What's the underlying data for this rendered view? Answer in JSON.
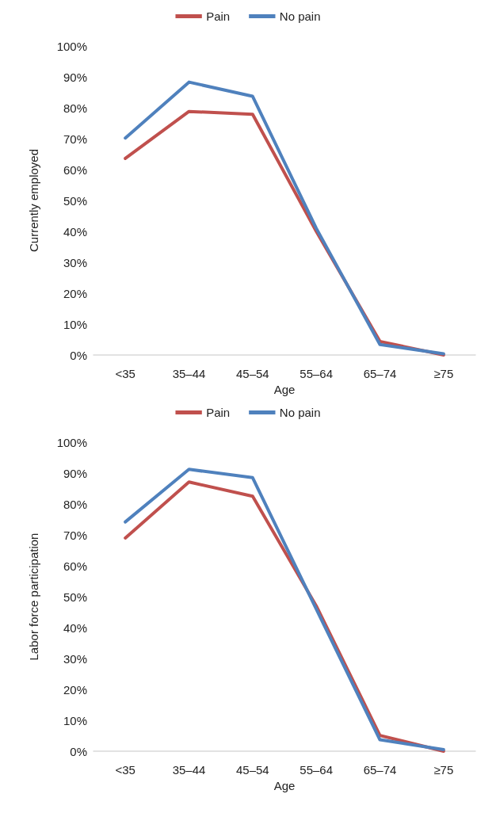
{
  "chart_data": [
    {
      "type": "line",
      "xlabel": "Age",
      "ylabel": "Currently employed",
      "categories": [
        "<35",
        "35–44",
        "45–54",
        "55–64",
        "65–74",
        "≥75"
      ],
      "series": [
        {
          "name": "Pain",
          "color": "#c0504d",
          "values": [
            63.6,
            78.8,
            77.9,
            40,
            4.4,
            0
          ]
        },
        {
          "name": "No pain",
          "color": "#4f81bd",
          "values": [
            70.2,
            88.3,
            83.7,
            41,
            3.4,
            0.4
          ]
        }
      ],
      "ylim": [
        0,
        100
      ],
      "yticks": [
        {
          "value": 0,
          "label": "0%"
        },
        {
          "value": 10,
          "label": "10%"
        },
        {
          "value": 20,
          "label": "20%"
        },
        {
          "value": 30,
          "label": "30%"
        },
        {
          "value": 40,
          "label": "40%"
        },
        {
          "value": 50,
          "label": "50%"
        },
        {
          "value": 60,
          "label": "60%"
        },
        {
          "value": 70,
          "label": "70%"
        },
        {
          "value": 80,
          "label": "80%"
        },
        {
          "value": 90,
          "label": "90%"
        },
        {
          "value": 100,
          "label": "100%"
        }
      ],
      "grid": false,
      "legend": "top",
      "marker": "none",
      "line_style": "solid"
    },
    {
      "type": "line",
      "xlabel": "Age",
      "ylabel": "Labor force participation",
      "categories": [
        "<35",
        "35–44",
        "45–54",
        "55–64",
        "65–74",
        "≥75"
      ],
      "series": [
        {
          "name": "Pain",
          "color": "#c0504d",
          "values": [
            69,
            87.1,
            82.5,
            47,
            5.1,
            0
          ]
        },
        {
          "name": "No pain",
          "color": "#4f81bd",
          "values": [
            74.2,
            91.2,
            88.5,
            46,
            3.7,
            0.5
          ]
        }
      ],
      "ylim": [
        0,
        100
      ],
      "yticks": [
        {
          "value": 0,
          "label": "0%"
        },
        {
          "value": 10,
          "label": "10%"
        },
        {
          "value": 20,
          "label": "20%"
        },
        {
          "value": 30,
          "label": "30%"
        },
        {
          "value": 40,
          "label": "40%"
        },
        {
          "value": 50,
          "label": "50%"
        },
        {
          "value": 60,
          "label": "60%"
        },
        {
          "value": 70,
          "label": "70%"
        },
        {
          "value": 80,
          "label": "80%"
        },
        {
          "value": 90,
          "label": "90%"
        },
        {
          "value": 100,
          "label": "100%"
        }
      ],
      "grid": false,
      "legend": "top",
      "marker": "none",
      "line_style": "solid"
    }
  ]
}
